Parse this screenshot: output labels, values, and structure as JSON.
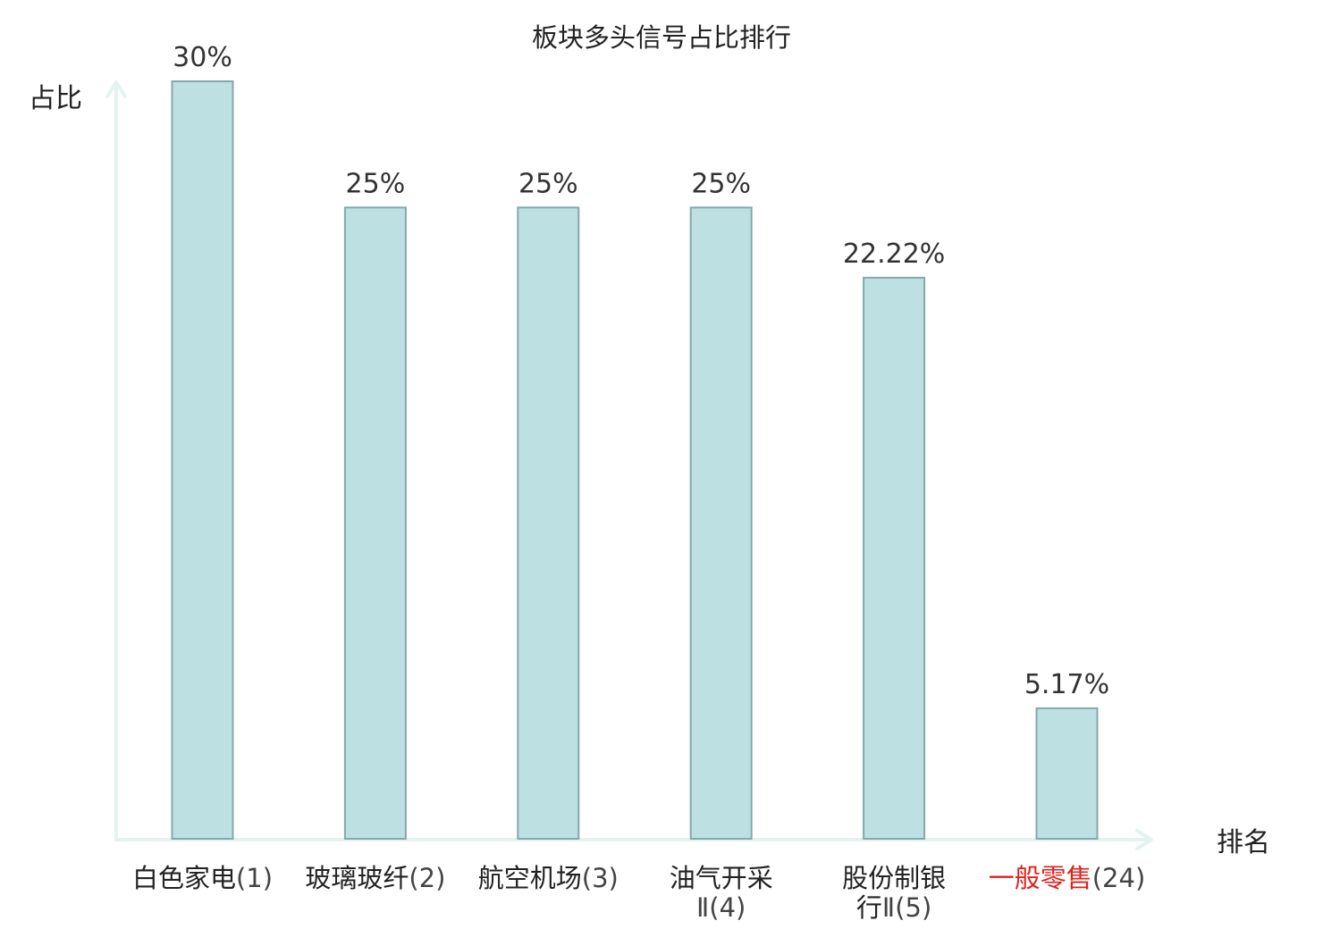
{
  "chart_data": {
    "type": "bar",
    "title": "板块多头信号占比排行",
    "xlabel": "排名",
    "ylabel": "占比",
    "ylim": [
      0,
      30
    ],
    "categories": [
      {
        "lines": [
          [
            {
              "t": "白色家电",
              "k": "name"
            },
            {
              "t": "(1)",
              "k": "num"
            }
          ]
        ]
      },
      {
        "lines": [
          [
            {
              "t": "玻璃玻纤",
              "k": "name"
            },
            {
              "t": "(2)",
              "k": "num"
            }
          ]
        ]
      },
      {
        "lines": [
          [
            {
              "t": "航空机场",
              "k": "name"
            },
            {
              "t": "(3)",
              "k": "num"
            }
          ]
        ]
      },
      {
        "lines": [
          [
            {
              "t": "油气开采",
              "k": "name"
            }
          ],
          [
            {
              "t": "Ⅱ(4)",
              "k": "num"
            }
          ]
        ]
      },
      {
        "lines": [
          [
            {
              "t": "股份制银",
              "k": "name"
            }
          ],
          [
            {
              "t": "行",
              "k": "name"
            },
            {
              "t": "Ⅱ(5)",
              "k": "num"
            }
          ]
        ]
      },
      {
        "lines": [
          [
            {
              "t": "一般零售",
              "k": "name"
            },
            {
              "t": "(24)",
              "k": "num"
            }
          ]
        ],
        "highlight": true
      }
    ],
    "values": [
      30,
      25,
      25,
      25,
      22.22,
      5.17
    ],
    "value_labels": [
      "30%",
      "25%",
      "25%",
      "25%",
      "22.22%",
      "5.17%"
    ],
    "colors": {
      "bar_fill": "#bde0e3",
      "bar_stroke": "#86a8ab",
      "axis": "#e3f3f0",
      "highlight": "#e0221b"
    }
  }
}
